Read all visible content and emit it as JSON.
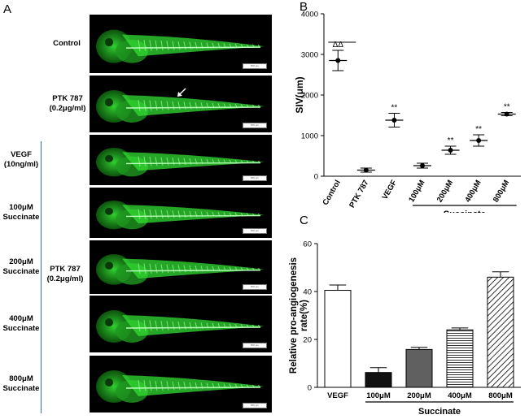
{
  "panels": {
    "a": "A",
    "b": "B",
    "c": "C"
  },
  "panel_a": {
    "rows": [
      {
        "label": "Control"
      },
      {
        "label": "PTK 787\n(0.2μg/ml)"
      },
      {
        "label": "VEGF\n(10ng/ml)"
      },
      {
        "label": "100μM\nSuccinate"
      },
      {
        "label": "200μM\nSuccinate"
      },
      {
        "label": "400μM\nSuccinate"
      },
      {
        "label": "800μM\nSuccinate"
      }
    ],
    "group_label": "PTK 787\n(0.2μg/ml)",
    "scale_text": "500 μm",
    "colors": {
      "fish": "#33dd33",
      "background": "#000000"
    }
  },
  "chart_data": [
    {
      "type": "scatter",
      "categories": [
        "Control",
        "PTK 787",
        "VEGF",
        "100μM",
        "200μM",
        "400μM",
        "800μM"
      ],
      "series": [
        {
          "values": [
            2850,
            150,
            1380,
            260,
            640,
            880,
            1530
          ],
          "error": [
            250,
            50,
            170,
            60,
            100,
            140,
            40
          ],
          "annotations": [
            "ΔΔ",
            "",
            "**",
            "",
            "**",
            "**",
            "**"
          ]
        }
      ],
      "ylabel": "SIV(μm)",
      "ylim": [
        0,
        4000
      ],
      "yticks": [
        0,
        1000,
        2000,
        3000,
        4000
      ],
      "group_label": "Succinate",
      "group_categories": [
        "100μM",
        "200μM",
        "400μM",
        "800μM"
      ]
    },
    {
      "type": "bar",
      "categories": [
        "VEGF",
        "100μM",
        "200μM",
        "400μM",
        "800μM"
      ],
      "series": [
        {
          "values": [
            40.5,
            6.2,
            15.8,
            24.0,
            46.0
          ],
          "error": [
            2.2,
            2.0,
            0.9,
            0.8,
            2.2
          ],
          "fills": [
            "white",
            "#111111",
            "#606060",
            "hlines",
            "diagonal"
          ]
        }
      ],
      "ylabel": "Relative pro-angiogenesis\nrate(%)",
      "ylim": [
        0,
        60
      ],
      "yticks": [
        0,
        20,
        40,
        60
      ],
      "group_label": "Succinate",
      "group_categories": [
        "100μM",
        "200μM",
        "400μM",
        "800μM"
      ]
    }
  ]
}
